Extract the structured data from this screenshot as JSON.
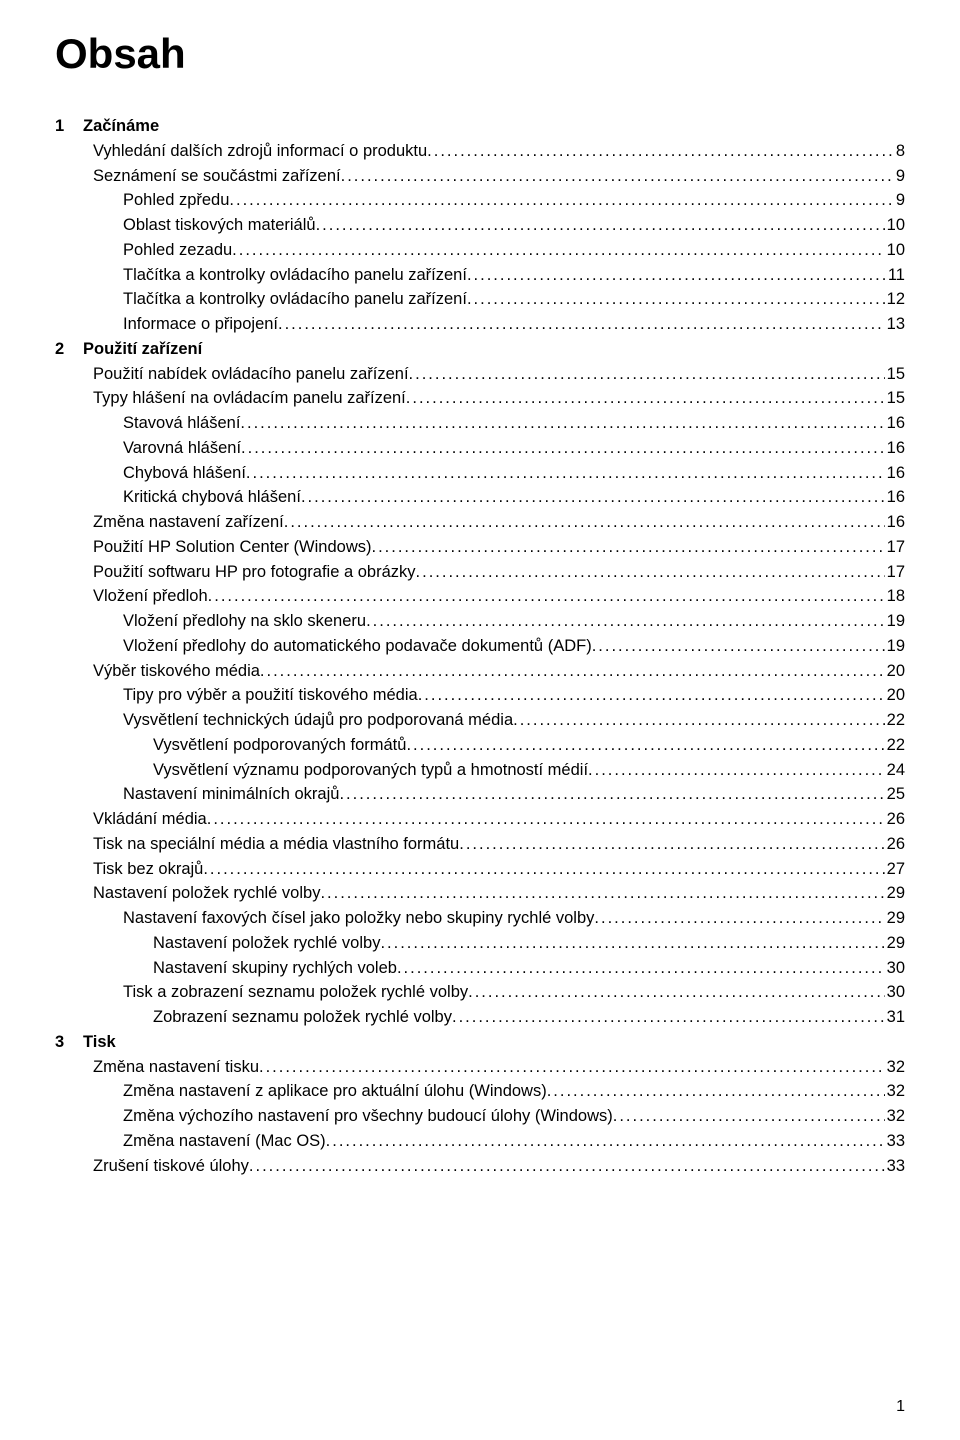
{
  "title": "Obsah",
  "page_number": "1",
  "dot_fill": "..........................................................................................................................................................................................................................",
  "chapters": [
    {
      "num": "1",
      "title": "Začínáme",
      "entries": [
        {
          "label": "Vyhledání dalších zdrojů informací o produktu",
          "page": "8",
          "indent": 0
        },
        {
          "label": "Seznámení se součástmi zařízení",
          "page": "9",
          "indent": 0
        },
        {
          "label": "Pohled zpředu",
          "page": "9",
          "indent": 1
        },
        {
          "label": "Oblast tiskových materiálů",
          "page": "10",
          "indent": 1
        },
        {
          "label": "Pohled zezadu",
          "page": "10",
          "indent": 1
        },
        {
          "label": "Tlačítka a kontrolky ovládacího panelu zařízení",
          "page": "11",
          "indent": 1
        },
        {
          "label": "Tlačítka a kontrolky ovládacího panelu zařízení",
          "page": "12",
          "indent": 1
        },
        {
          "label": "Informace o připojení",
          "page": "13",
          "indent": 1
        }
      ]
    },
    {
      "num": "2",
      "title": "Použití zařízení",
      "entries": [
        {
          "label": "Použití nabídek ovládacího panelu zařízení",
          "page": "15",
          "indent": 0
        },
        {
          "label": "Typy hlášení na ovládacím panelu zařízení",
          "page": "15",
          "indent": 0
        },
        {
          "label": "Stavová hlášení",
          "page": "16",
          "indent": 1
        },
        {
          "label": "Varovná hlášení",
          "page": "16",
          "indent": 1
        },
        {
          "label": "Chybová hlášení",
          "page": "16",
          "indent": 1
        },
        {
          "label": "Kritická chybová hlášení",
          "page": "16",
          "indent": 1
        },
        {
          "label": "Změna nastavení zařízení",
          "page": "16",
          "indent": 0
        },
        {
          "label": "Použití HP Solution Center (Windows)",
          "page": "17",
          "indent": 0
        },
        {
          "label": "Použití softwaru HP pro fotografie a obrázky",
          "page": "17",
          "indent": 0
        },
        {
          "label": "Vložení předloh",
          "page": "18",
          "indent": 0
        },
        {
          "label": "Vložení předlohy na sklo skeneru",
          "page": "19",
          "indent": 1
        },
        {
          "label": "Vložení předlohy do automatického podavače dokumentů (ADF)",
          "page": "19",
          "indent": 1
        },
        {
          "label": "Výběr tiskového média",
          "page": "20",
          "indent": 0
        },
        {
          "label": "Tipy pro výběr a použití tiskového média",
          "page": "20",
          "indent": 1
        },
        {
          "label": "Vysvětlení technických údajů pro podporovaná média",
          "page": "22",
          "indent": 1
        },
        {
          "label": "Vysvětlení podporovaných formátů",
          "page": "22",
          "indent": 2
        },
        {
          "label": "Vysvětlení významu podporovaných typů a hmotností médií",
          "page": "24",
          "indent": 2
        },
        {
          "label": "Nastavení minimálních okrajů",
          "page": "25",
          "indent": 1
        },
        {
          "label": "Vkládání média",
          "page": "26",
          "indent": 0
        },
        {
          "label": "Tisk na speciální média a média vlastního formátu",
          "page": "26",
          "indent": 0
        },
        {
          "label": "Tisk bez okrajů",
          "page": "27",
          "indent": 0
        },
        {
          "label": "Nastavení položek rychlé volby",
          "page": "29",
          "indent": 0
        },
        {
          "label": "Nastavení faxových čísel jako položky nebo skupiny rychlé volby",
          "page": "29",
          "indent": 1
        },
        {
          "label": "Nastavení položek rychlé volby",
          "page": "29",
          "indent": 2
        },
        {
          "label": "Nastavení skupiny rychlých voleb",
          "page": "30",
          "indent": 2
        },
        {
          "label": "Tisk a zobrazení seznamu položek rychlé volby",
          "page": "30",
          "indent": 1
        },
        {
          "label": "Zobrazení seznamu položek rychlé volby",
          "page": "31",
          "indent": 2
        }
      ]
    },
    {
      "num": "3",
      "title": "Tisk",
      "entries": [
        {
          "label": "Změna nastavení tisku",
          "page": "32",
          "indent": 0
        },
        {
          "label": "Změna nastavení z aplikace pro aktuální úlohu (Windows)",
          "page": "32",
          "indent": 1
        },
        {
          "label": "Změna výchozího nastavení pro všechny budoucí úlohy (Windows)",
          "page": "32",
          "indent": 1
        },
        {
          "label": "Změna nastavení (Mac OS)",
          "page": "33",
          "indent": 1
        },
        {
          "label": "Zrušení tiskové úlohy",
          "page": "33",
          "indent": 0
        }
      ]
    }
  ]
}
